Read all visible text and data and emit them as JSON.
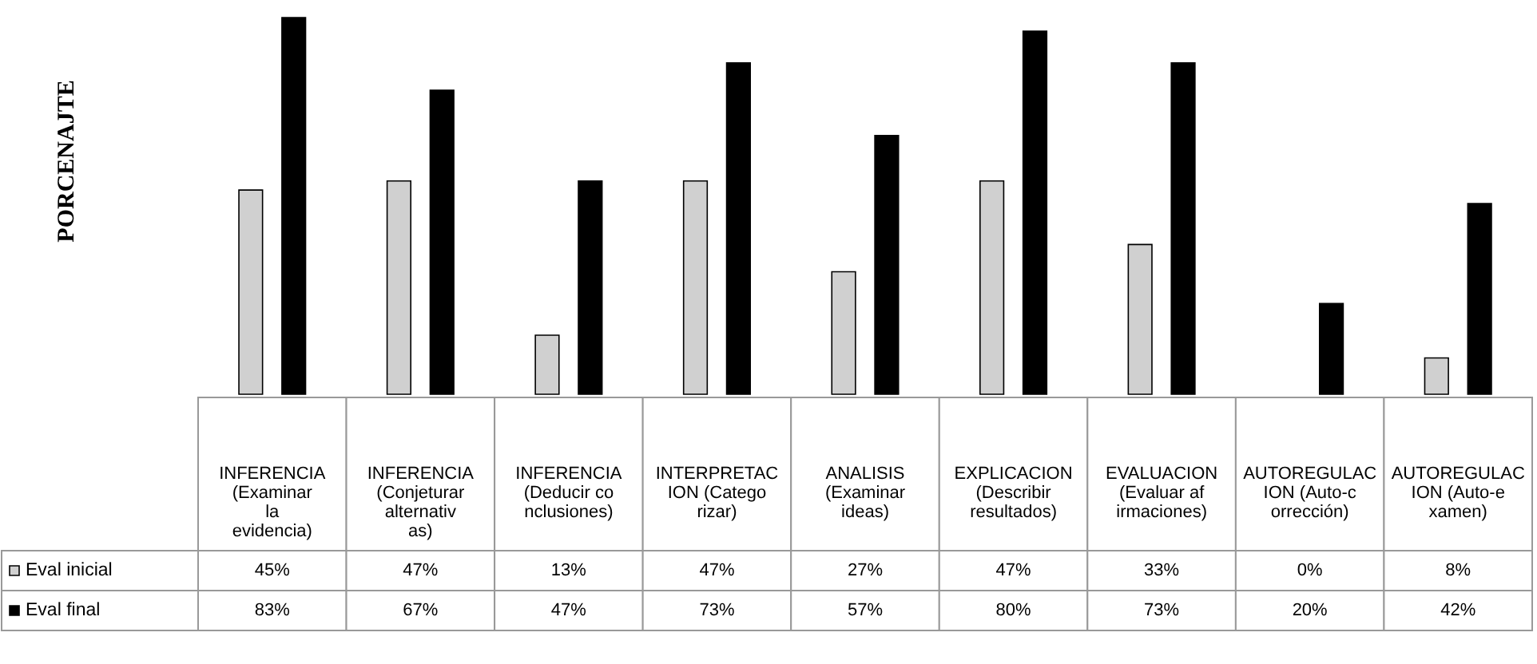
{
  "chart_data": {
    "type": "bar",
    "ylabel": "PORCENAJTE",
    "categories": [
      "INFERENCIA (Examinar la evidencia)",
      "INFERENCIA (Conjeturar alternativas)",
      "INFERENCIA (Deducir conclusiones)",
      "INTERPRETACION (Categorizar)",
      "ANALISIS (Examinar ideas)",
      "EXPLICACION (Describir resultados)",
      "EVALUACION (Evaluar afirmaciones)",
      "AUTOREGULACION (Auto-corrección)",
      "AUTOREGULACION (Auto-examen)"
    ],
    "legend": "bottom",
    "series": [
      {
        "name": "Eval inicial",
        "color": "#d0d0d0",
        "values": [
          45,
          47,
          13,
          47,
          27,
          47,
          33,
          0,
          8
        ],
        "value_labels": [
          "45%",
          "47%",
          "13%",
          "47%",
          "27%",
          "47%",
          "33%",
          "0%",
          "8%"
        ]
      },
      {
        "name": "Eval final",
        "color": "#000000",
        "values": [
          83,
          67,
          47,
          73,
          57,
          80,
          73,
          20,
          42
        ],
        "value_labels": [
          "83%",
          "67%",
          "47%",
          "73%",
          "57%",
          "80%",
          "73%",
          "20%",
          "42%"
        ]
      }
    ]
  }
}
